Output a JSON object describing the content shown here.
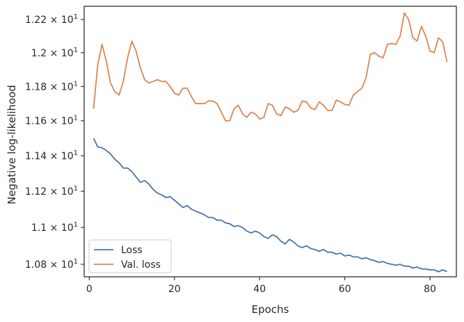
{
  "chart_data": {
    "type": "line",
    "title": "",
    "xlabel": "Epochs",
    "ylabel": "Negative log-likelihood",
    "xlim": [
      -1.2,
      86.2
    ],
    "ylim": [
      10.733,
      12.281
    ],
    "yscale": "log",
    "grid": false,
    "legend_position": "lower-left",
    "x_ticks": [
      0,
      20,
      40,
      60,
      80
    ],
    "y_ticks": [
      {
        "value": 10.8,
        "mantissa": "1.08"
      },
      {
        "value": 11.0,
        "mantissa": "1.1"
      },
      {
        "value": 11.2,
        "mantissa": "1.12"
      },
      {
        "value": 11.4,
        "mantissa": "1.14"
      },
      {
        "value": 11.6,
        "mantissa": "1.16"
      },
      {
        "value": 11.8,
        "mantissa": "1.18"
      },
      {
        "value": 12.0,
        "mantissa": "1.2"
      },
      {
        "value": 12.2,
        "mantissa": "1.22"
      }
    ],
    "y_tick_base": "10",
    "y_tick_exponent": "1",
    "x": [
      1,
      2,
      3,
      4,
      5,
      6,
      7,
      8,
      9,
      10,
      11,
      12,
      13,
      14,
      15,
      16,
      17,
      18,
      19,
      20,
      21,
      22,
      23,
      24,
      25,
      26,
      27,
      28,
      29,
      30,
      31,
      32,
      33,
      34,
      35,
      36,
      37,
      38,
      39,
      40,
      41,
      42,
      43,
      44,
      45,
      46,
      47,
      48,
      49,
      50,
      51,
      52,
      53,
      54,
      55,
      56,
      57,
      58,
      59,
      60,
      61,
      62,
      63,
      64,
      65,
      66,
      67,
      68,
      69,
      70,
      71,
      72,
      73,
      74,
      75,
      76,
      77,
      78,
      79,
      80,
      81,
      82,
      83,
      84
    ],
    "series": [
      {
        "name": "Loss",
        "color": "#4c72b0",
        "values": [
          11.5,
          11.45,
          11.445,
          11.43,
          11.41,
          11.38,
          11.36,
          11.33,
          11.33,
          11.31,
          11.28,
          11.25,
          11.26,
          11.24,
          11.21,
          11.19,
          11.18,
          11.165,
          11.17,
          11.15,
          11.13,
          11.11,
          11.12,
          11.1,
          11.09,
          11.08,
          11.07,
          11.055,
          11.055,
          11.04,
          11.04,
          11.025,
          11.02,
          11.005,
          11.01,
          11.0,
          10.98,
          10.97,
          10.98,
          10.97,
          10.95,
          10.94,
          10.96,
          10.95,
          10.925,
          10.91,
          10.935,
          10.92,
          10.9,
          10.89,
          10.9,
          10.885,
          10.88,
          10.87,
          10.88,
          10.865,
          10.865,
          10.855,
          10.86,
          10.845,
          10.85,
          10.84,
          10.84,
          10.83,
          10.835,
          10.825,
          10.82,
          10.81,
          10.815,
          10.805,
          10.8,
          10.795,
          10.8,
          10.79,
          10.79,
          10.78,
          10.785,
          10.775,
          10.775,
          10.77,
          10.77,
          10.76,
          10.77,
          10.76
        ]
      },
      {
        "name": "Val. loss",
        "color": "#dd8452",
        "values": [
          11.67,
          11.93,
          12.05,
          11.95,
          11.82,
          11.77,
          11.75,
          11.83,
          11.97,
          12.07,
          12.01,
          11.91,
          11.84,
          11.82,
          11.83,
          11.84,
          11.83,
          11.83,
          11.8,
          11.76,
          11.75,
          11.79,
          11.79,
          11.74,
          11.7,
          11.7,
          11.7,
          11.715,
          11.715,
          11.7,
          11.65,
          11.6,
          11.6,
          11.67,
          11.69,
          11.64,
          11.62,
          11.65,
          11.64,
          11.61,
          11.62,
          11.7,
          11.69,
          11.64,
          11.63,
          11.68,
          11.67,
          11.65,
          11.66,
          11.715,
          11.71,
          11.675,
          11.665,
          11.71,
          11.69,
          11.66,
          11.66,
          11.72,
          11.71,
          11.695,
          11.69,
          11.75,
          11.77,
          11.79,
          11.85,
          11.99,
          12.0,
          11.98,
          11.97,
          12.05,
          12.055,
          12.05,
          12.1,
          12.24,
          12.2,
          12.09,
          12.07,
          12.16,
          12.1,
          12.01,
          12.0,
          12.09,
          12.065,
          11.945
        ]
      }
    ]
  }
}
